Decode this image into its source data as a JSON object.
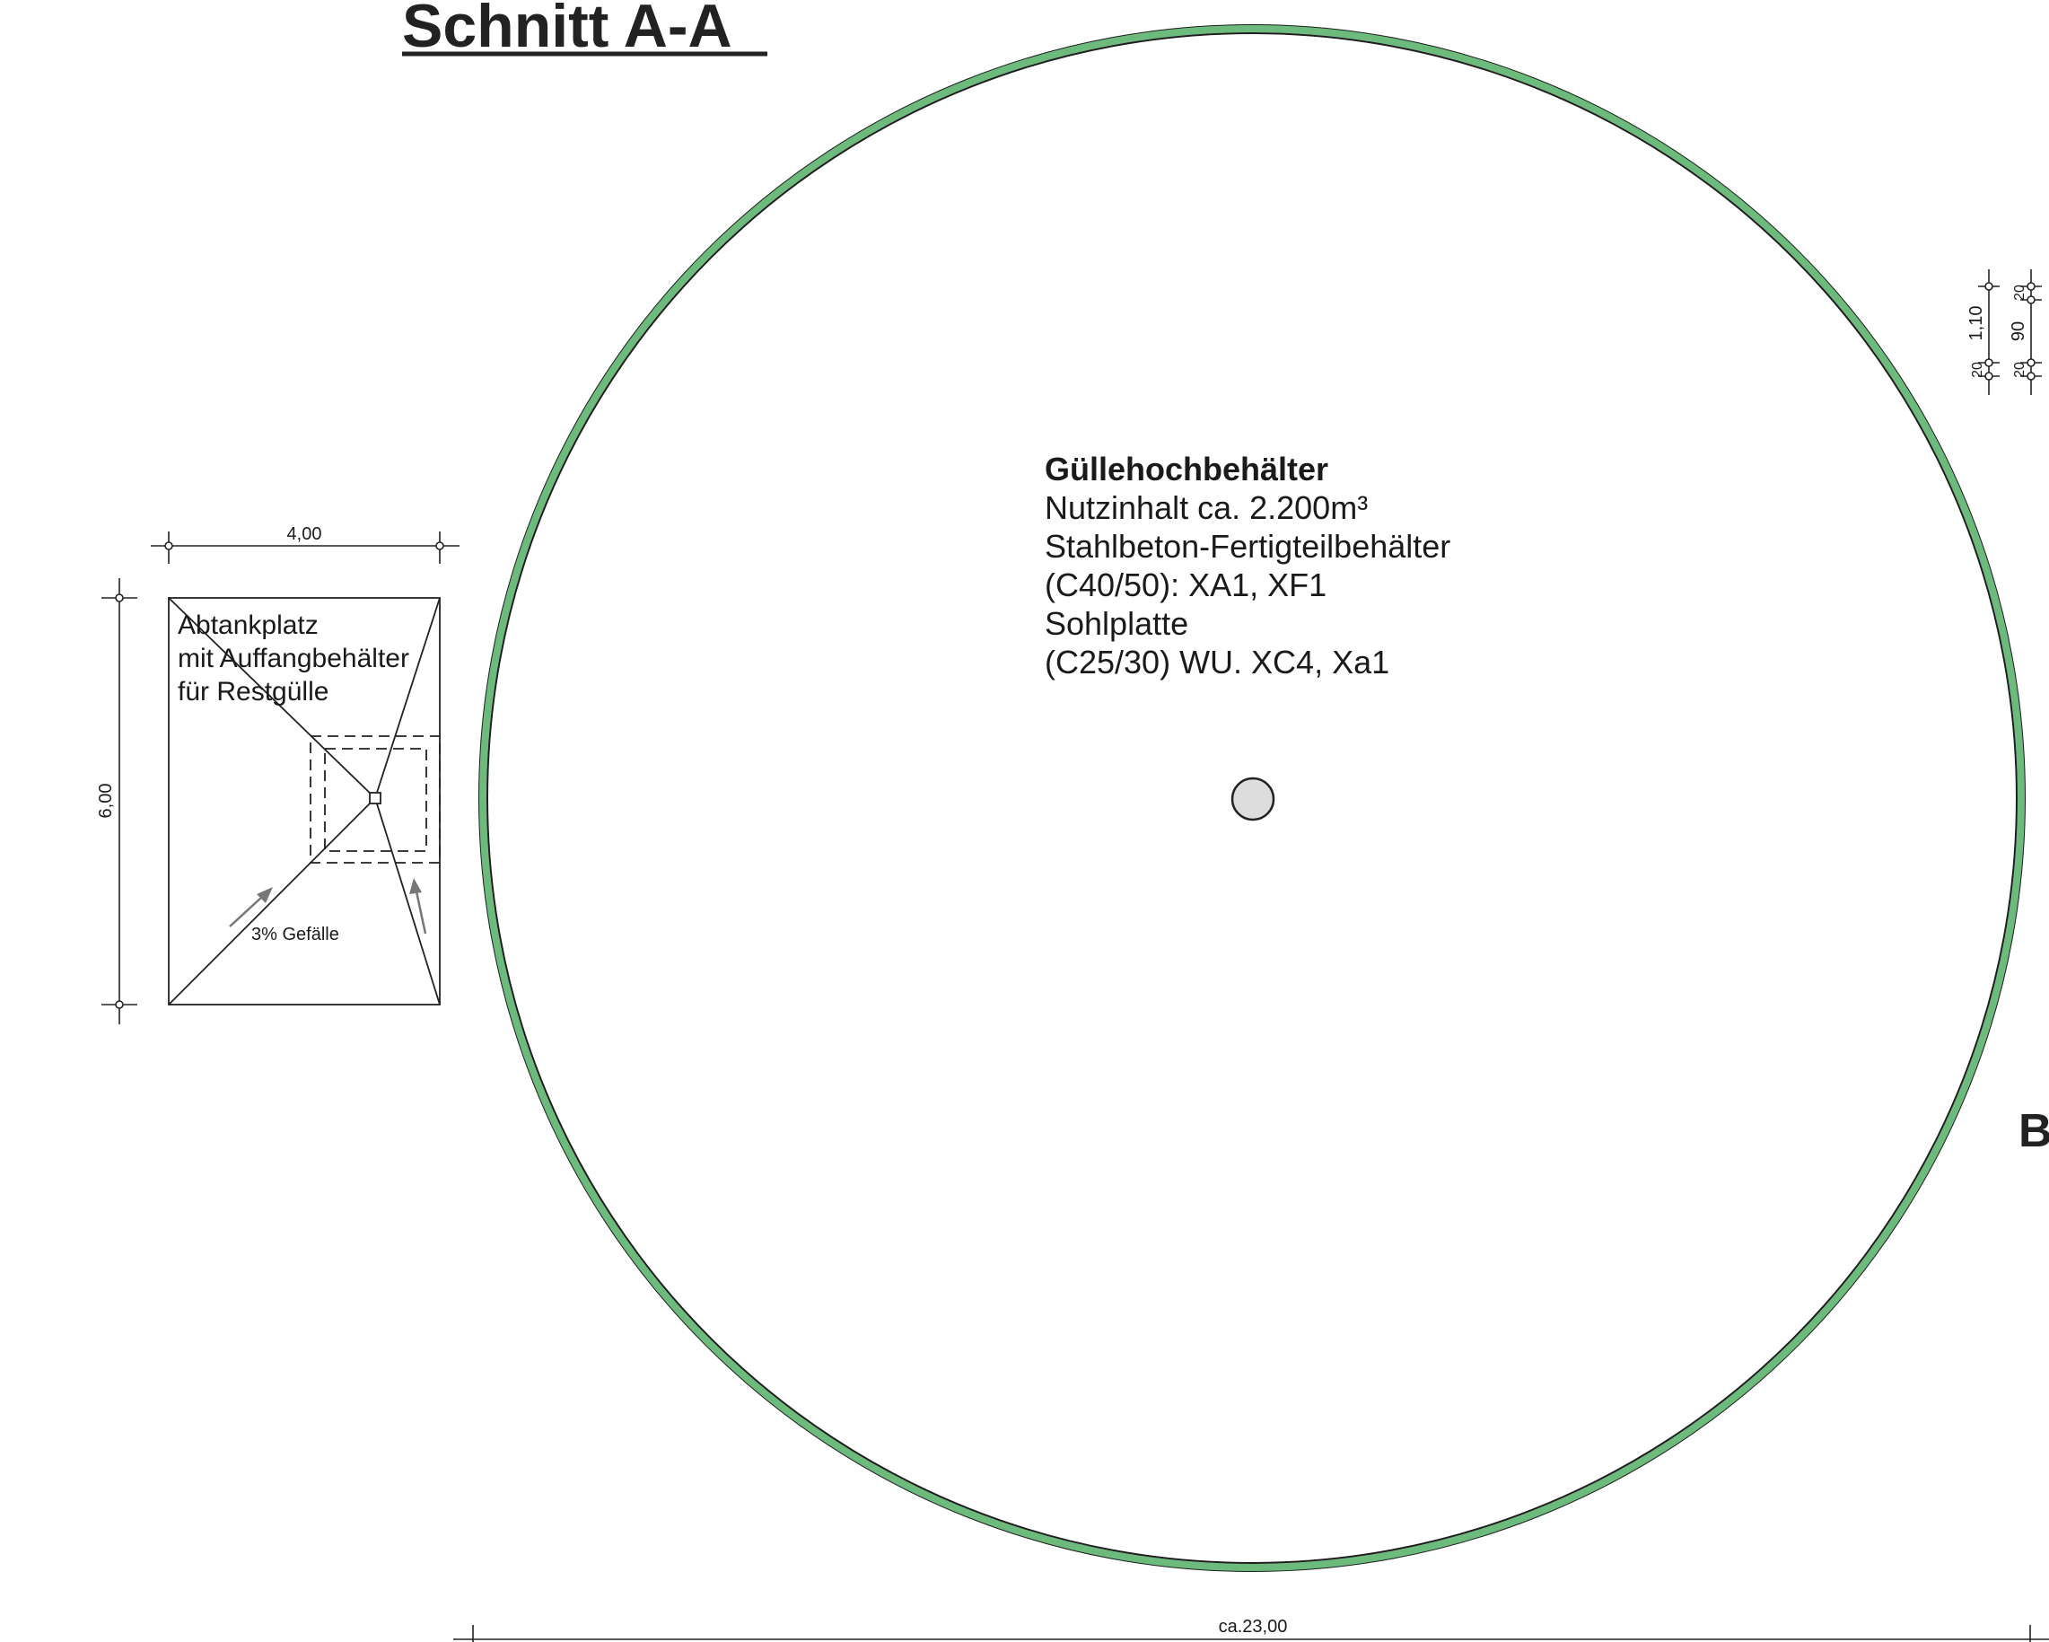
{
  "drawing": {
    "title": "Schnitt A-A",
    "side_letter": "B",
    "colors": {
      "tank_wall": "#6dbb7c",
      "tank_outline": "#1e1e1e",
      "center_fill": "#dddddd",
      "arrow": "#777777"
    }
  },
  "tank": {
    "name": "Güllehochbehälter",
    "lines": [
      "Nutzinhalt ca. 2.200m³",
      "Stahlbeton-Fertigteilbehälter",
      "(C40/50): XA1, XF1",
      "Sohlplatte",
      "(C25/30) WU. XC4, Xa1"
    ],
    "diameter_label": "ca.23,00"
  },
  "pad": {
    "lines": [
      "Abtankplatz",
      "mit Auffangbehälter",
      "für Restgülle"
    ],
    "width_label": "4,00",
    "length_label": "6,00",
    "slope_label": "3% Gefälle"
  },
  "wall_dimensions": {
    "chain_a": [
      "20",
      "1,10",
      "20"
    ],
    "chain_b": [
      "20",
      "90",
      "20"
    ]
  }
}
